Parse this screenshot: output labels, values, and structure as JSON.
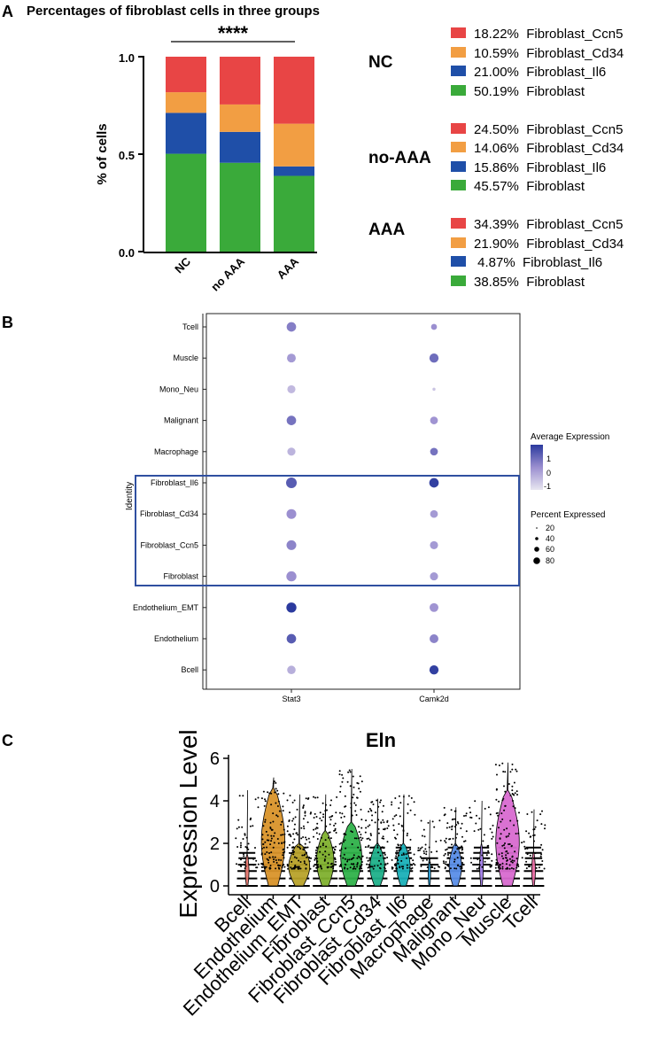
{
  "colors": {
    "ccn5": "#e84545",
    "cd34": "#f29e43",
    "il6": "#1f4fa8",
    "fib": "#3aaa3a",
    "box": "#2f4fa0"
  },
  "panel_a": {
    "label": "A",
    "title": "Percentages of fibroblast cells in three groups",
    "ylabel": "% of cells",
    "significance": "****",
    "yticks": [
      "0.0",
      "0.5",
      "1.0"
    ],
    "groups": [
      {
        "name": "NC",
        "legend": [
          "18.22%  Fibroblast_Ccn5",
          "10.59%  Fibroblast_Cd34",
          "21.00%  Fibroblast_Il6",
          "50.19%  Fibroblast"
        ]
      },
      {
        "name": "no-AAA",
        "legend": [
          "24.50%  Fibroblast_Ccn5",
          "14.06%  Fibroblast_Cd34",
          "15.86%  Fibroblast_Il6",
          "45.57%  Fibroblast"
        ]
      },
      {
        "name": "AAA",
        "legend": [
          "34.39%  Fibroblast_Ccn5",
          "21.90%  Fibroblast_Cd34",
          " 4.87%  Fibroblast_Il6",
          "38.85%  Fibroblast"
        ]
      }
    ]
  },
  "panel_b": {
    "label": "B",
    "ylabel": "Identity",
    "genes": [
      "Stat3",
      "Camk2d"
    ],
    "cells": [
      "Tcell",
      "Muscle",
      "Mono_Neu",
      "Malignant",
      "Macrophage",
      "Fibroblast_Il6",
      "Fibroblast_Cd34",
      "Fibroblast_Ccn5",
      "Fibroblast",
      "Endothelium_EMT",
      "Endothelium",
      "Bcell"
    ],
    "legend_expr_title": "Average Expression",
    "legend_expr_ticks": [
      "1",
      "0",
      "-1"
    ],
    "legend_pct_title": "Percent Expressed",
    "legend_pct_ticks": [
      "20",
      "40",
      "60",
      "80"
    ]
  },
  "panel_c": {
    "label": "C",
    "title": "Eln",
    "ylabel": "Expression Level",
    "yticks": [
      "0",
      "2",
      "4",
      "6"
    ],
    "categories": [
      "Bcell",
      "Endothelium",
      "Endothelium_EMT",
      "Fibroblast",
      "Fibroblast_Ccn5",
      "Fibroblast_Cd34",
      "Fibroblast_Il6",
      "Macrophage",
      "Malignant",
      "Mono_Neu",
      "Muscle",
      "Tcell"
    ]
  },
  "chart_data": [
    {
      "type": "bar",
      "stacked": true,
      "title": "Percentages of fibroblast cells in three groups",
      "xlabel": "",
      "ylabel": "% of cells",
      "ylim": [
        0,
        1.0
      ],
      "categories": [
        "NC",
        "no AAA",
        "AAA"
      ],
      "series": [
        {
          "name": "Fibroblast",
          "color": "#3aaa3a",
          "values": [
            0.5019,
            0.4557,
            0.3885
          ]
        },
        {
          "name": "Fibroblast_Il6",
          "color": "#1f4fa8",
          "values": [
            0.21,
            0.1586,
            0.0487
          ]
        },
        {
          "name": "Fibroblast_Cd34",
          "color": "#f29e43",
          "values": [
            0.1059,
            0.1406,
            0.219
          ]
        },
        {
          "name": "Fibroblast_Ccn5",
          "color": "#e84545",
          "values": [
            0.1822,
            0.245,
            0.3439
          ]
        }
      ]
    },
    {
      "type": "scatter",
      "subtype": "dotplot",
      "xlabel": "",
      "ylabel": "Identity",
      "genes": [
        "Stat3",
        "Camk2d"
      ],
      "identities": [
        "Tcell",
        "Muscle",
        "Mono_Neu",
        "Malignant",
        "Macrophage",
        "Fibroblast_Il6",
        "Fibroblast_Cd34",
        "Fibroblast_Ccn5",
        "Fibroblast",
        "Endothelium_EMT",
        "Endothelium",
        "Bcell"
      ],
      "avg_expression": {
        "Stat3": [
          0.3,
          -0.2,
          -0.8,
          0.5,
          -0.7,
          0.9,
          0.0,
          0.2,
          0.0,
          1.5,
          0.9,
          -0.6
        ],
        "Camk2d": [
          0.0,
          0.6,
          -1.0,
          -0.1,
          0.5,
          1.4,
          -0.2,
          -0.2,
          -0.2,
          -0.1,
          0.2,
          1.4
        ]
      },
      "pct_expressed": {
        "Stat3": [
          70,
          60,
          50,
          70,
          50,
          90,
          75,
          75,
          80,
          80,
          70,
          55
        ],
        "Camk2d": [
          25,
          65,
          5,
          45,
          45,
          70,
          45,
          50,
          50,
          60,
          60,
          65
        ]
      },
      "expr_range": [
        -1.5,
        1.5
      ],
      "pct_range": [
        0,
        90
      ]
    },
    {
      "type": "violin",
      "title": "Eln",
      "xlabel": "",
      "ylabel": "Expression Level",
      "ylim": [
        -0.2,
        6.2
      ],
      "categories": [
        "Bcell",
        "Endothelium",
        "Endothelium_EMT",
        "Fibroblast",
        "Fibroblast_Ccn5",
        "Fibroblast_Cd34",
        "Fibroblast_Il6",
        "Macrophage",
        "Malignant",
        "Mono_Neu",
        "Muscle",
        "Tcell"
      ],
      "colors": [
        "#e8776f",
        "#d9932a",
        "#b8a22a",
        "#7fb02e",
        "#2fb24a",
        "#1fb08a",
        "#1ab0b8",
        "#2aa6e0",
        "#5a8ee8",
        "#a27ee8",
        "#d86ad0",
        "#e66aa0"
      ],
      "max": [
        4.5,
        5.1,
        4.3,
        4.3,
        5.5,
        4.1,
        4.3,
        3.1,
        3.7,
        4.0,
        5.8,
        3.6
      ],
      "bulk_top": [
        1.5,
        4.6,
        2.0,
        2.6,
        3.0,
        2.0,
        2.0,
        1.3,
        2.0,
        2.0,
        4.5,
        1.6
      ],
      "width": [
        0.15,
        0.95,
        0.85,
        0.7,
        0.85,
        0.6,
        0.55,
        0.1,
        0.5,
        0.15,
        0.95,
        0.15
      ]
    }
  ]
}
